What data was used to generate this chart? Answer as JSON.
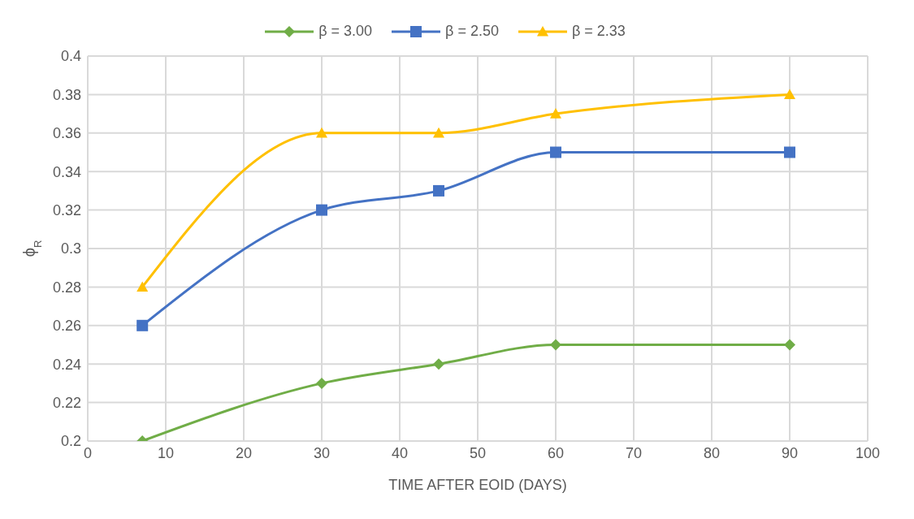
{
  "chart_data": {
    "type": "line",
    "xlabel": "TIME AFTER EOID (DAYS)",
    "ylabel": "ϕ$_{R}$",
    "x": [
      7,
      30,
      45,
      60,
      90
    ],
    "series": [
      {
        "name": "β = 3.00",
        "color": "#70ad47",
        "marker": "diamond",
        "values": [
          0.2,
          0.23,
          0.24,
          0.25,
          0.25
        ]
      },
      {
        "name": "β = 2.50",
        "color": "#4472c4",
        "marker": "square",
        "values": [
          0.26,
          0.32,
          0.33,
          0.35,
          0.35
        ]
      },
      {
        "name": "β = 2.33",
        "color": "#ffc000",
        "marker": "triangle",
        "values": [
          0.28,
          0.36,
          0.36,
          0.37,
          0.38
        ]
      }
    ],
    "xlim": [
      0,
      100
    ],
    "xticks": [
      0,
      10,
      20,
      30,
      40,
      50,
      60,
      70,
      80,
      90,
      100
    ],
    "ylim": [
      0.2,
      0.4
    ],
    "yticks": [
      0.2,
      0.22,
      0.24,
      0.26,
      0.28,
      0.3,
      0.32,
      0.34,
      0.36,
      0.38,
      0.4
    ],
    "grid": true,
    "legend": "top"
  }
}
